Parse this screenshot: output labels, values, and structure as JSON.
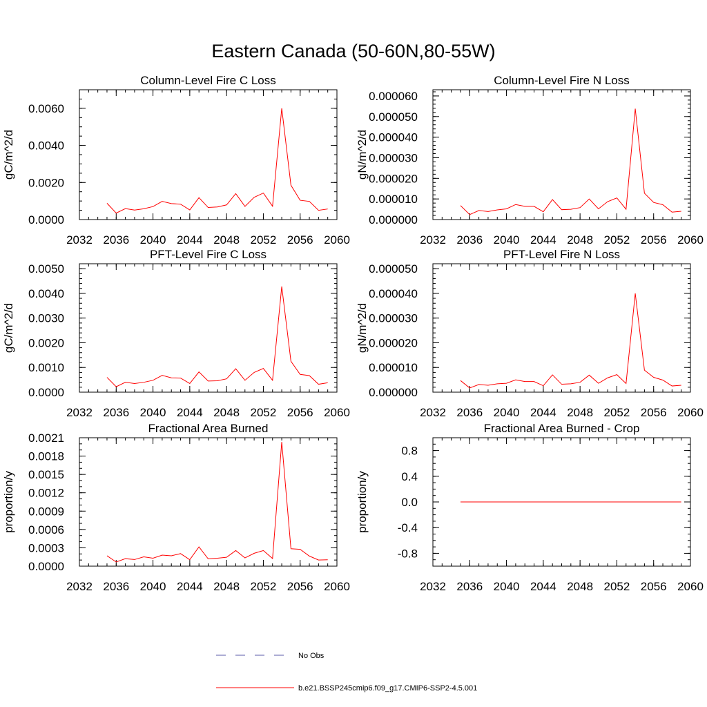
{
  "figure_title": "Eastern Canada (50-60N,80-55W)",
  "colors": {
    "model_line": "#ff0000",
    "obs_line": "#5a5aa8",
    "axis": "#000000"
  },
  "legend": {
    "obs_label": "No Obs",
    "model_label": "b.e21.BSSP245cmip6.f09_g17.CMIP6-SSP2-4.5.001"
  },
  "chart_data": [
    {
      "type": "line",
      "title": "Column-Level Fire C Loss",
      "ylabel": "gC/m^2/d",
      "xlim": [
        2032,
        2060
      ],
      "ylim": [
        0.0,
        0.007
      ],
      "xticks": [
        2032,
        2036,
        2040,
        2044,
        2048,
        2052,
        2056,
        2060
      ],
      "xtick_labels": [
        "2032",
        "2036",
        "2040",
        "2044",
        "2048",
        "2052",
        "2056",
        "2060"
      ],
      "yticks": [
        0.0,
        0.002,
        0.004,
        0.006
      ],
      "ytick_labels": [
        "0.0000",
        "0.0020",
        "0.0040",
        "0.0060"
      ],
      "minor_y_step": 0.0005,
      "series": [
        {
          "x": [
            2035,
            2036,
            2037,
            2038,
            2039,
            2040,
            2041,
            2042,
            2043,
            2044,
            2045,
            2046,
            2047,
            2048,
            2049,
            2050,
            2051,
            2052,
            2053,
            2054,
            2055,
            2056,
            2057,
            2058,
            2059
          ],
          "values": [
            0.00088,
            0.00035,
            0.00059,
            0.00051,
            0.00058,
            0.0007,
            0.00098,
            0.00086,
            0.00083,
            0.00052,
            0.00118,
            0.00065,
            0.00068,
            0.00079,
            0.0014,
            0.00071,
            0.0012,
            0.00143,
            0.00072,
            0.006,
            0.00185,
            0.00104,
            0.00098,
            0.0005,
            0.00057
          ]
        }
      ]
    },
    {
      "type": "line",
      "title": "Column-Level Fire N Loss",
      "ylabel": "gN/m^2/d",
      "xlim": [
        2032,
        2060
      ],
      "ylim": [
        0.0,
        6.3e-05
      ],
      "xticks": [
        2032,
        2036,
        2040,
        2044,
        2048,
        2052,
        2056,
        2060
      ],
      "xtick_labels": [
        "2032",
        "2036",
        "2040",
        "2044",
        "2048",
        "2052",
        "2056",
        "2060"
      ],
      "yticks": [
        0.0,
        1e-05,
        2e-05,
        3e-05,
        4e-05,
        5e-05,
        6e-05
      ],
      "ytick_labels": [
        "0.000000",
        "0.000010",
        "0.000020",
        "0.000030",
        "0.000040",
        "0.000050",
        "0.000060"
      ],
      "minor_y_step": 2e-06,
      "series": [
        {
          "x": [
            2035,
            2036,
            2037,
            2038,
            2039,
            2040,
            2041,
            2042,
            2043,
            2044,
            2045,
            2046,
            2047,
            2048,
            2049,
            2050,
            2051,
            2052,
            2053,
            2054,
            2055,
            2056,
            2057,
            2058,
            2059
          ],
          "values": [
            6.8e-06,
            2.4e-06,
            4.4e-06,
            3.9e-06,
            4.7e-06,
            5.2e-06,
            7.3e-06,
            6.4e-06,
            6.4e-06,
            3.8e-06,
            9.7e-06,
            4.8e-06,
            5e-06,
            5.8e-06,
            1e-05,
            5.2e-06,
            8.7e-06,
            1.05e-05,
            5e-06,
            5.38e-05,
            1.28e-05,
            8.3e-06,
            7.2e-06,
            3.6e-06,
            4e-06
          ]
        }
      ]
    },
    {
      "type": "line",
      "title": "PFT-Level Fire C Loss",
      "ylabel": "gC/m^2/d",
      "xlim": [
        2032,
        2060
      ],
      "ylim": [
        0.0,
        0.0052
      ],
      "xticks": [
        2032,
        2036,
        2040,
        2044,
        2048,
        2052,
        2056,
        2060
      ],
      "xtick_labels": [
        "2032",
        "2036",
        "2040",
        "2044",
        "2048",
        "2052",
        "2056",
        "2060"
      ],
      "yticks": [
        0.0,
        0.001,
        0.002,
        0.003,
        0.004,
        0.005
      ],
      "ytick_labels": [
        "0.0000",
        "0.0010",
        "0.0020",
        "0.0030",
        "0.0040",
        "0.0050"
      ],
      "minor_y_step": 0.0002,
      "series": [
        {
          "x": [
            2035,
            2036,
            2037,
            2038,
            2039,
            2040,
            2041,
            2042,
            2043,
            2044,
            2045,
            2046,
            2047,
            2048,
            2049,
            2050,
            2051,
            2052,
            2053,
            2054,
            2055,
            2056,
            2057,
            2058,
            2059
          ],
          "values": [
            0.0006,
            0.00022,
            0.0004,
            0.00035,
            0.0004,
            0.00048,
            0.00068,
            0.00058,
            0.00057,
            0.00035,
            0.00082,
            0.00045,
            0.00046,
            0.00054,
            0.00095,
            0.00048,
            0.0008,
            0.00096,
            0.00048,
            0.00428,
            0.00125,
            0.00072,
            0.00067,
            0.00032,
            0.00038
          ]
        }
      ]
    },
    {
      "type": "line",
      "title": "PFT-Level Fire N Loss",
      "ylabel": "gN/m^2/d",
      "xlim": [
        2032,
        2060
      ],
      "ylim": [
        0.0,
        5.2e-05
      ],
      "xticks": [
        2032,
        2036,
        2040,
        2044,
        2048,
        2052,
        2056,
        2060
      ],
      "xtick_labels": [
        "2032",
        "2036",
        "2040",
        "2044",
        "2048",
        "2052",
        "2056",
        "2060"
      ],
      "yticks": [
        0.0,
        1e-05,
        2e-05,
        3e-05,
        4e-05,
        5e-05
      ],
      "ytick_labels": [
        "0.000000",
        "0.000010",
        "0.000020",
        "0.000030",
        "0.000040",
        "0.000050"
      ],
      "minor_y_step": 2e-06,
      "series": [
        {
          "x": [
            2035,
            2036,
            2037,
            2038,
            2039,
            2040,
            2041,
            2042,
            2043,
            2044,
            2045,
            2046,
            2047,
            2048,
            2049,
            2050,
            2051,
            2052,
            2053,
            2054,
            2055,
            2056,
            2057,
            2058,
            2059
          ],
          "values": [
            4.7e-06,
            1.7e-06,
            3.1e-06,
            2.8e-06,
            3.4e-06,
            3.6e-06,
            5e-06,
            4.3e-06,
            4.3e-06,
            2.6e-06,
            7e-06,
            3.2e-06,
            3.4e-06,
            4e-06,
            6.9e-06,
            3.6e-06,
            5.8e-06,
            7.1e-06,
            3.5e-06,
            4e-05,
            8.9e-06,
            6e-06,
            4.9e-06,
            2.5e-06,
            2.8e-06
          ]
        }
      ]
    },
    {
      "type": "line",
      "title": "Fractional Area Burned",
      "ylabel": "proportion/y",
      "xlim": [
        2032,
        2060
      ],
      "ylim": [
        0.0,
        0.0021
      ],
      "xticks": [
        2032,
        2036,
        2040,
        2044,
        2048,
        2052,
        2056,
        2060
      ],
      "xtick_labels": [
        "2032",
        "2036",
        "2040",
        "2044",
        "2048",
        "2052",
        "2056",
        "2060"
      ],
      "yticks": [
        0.0,
        0.0003,
        0.0006,
        0.0009,
        0.0012,
        0.0015,
        0.0018,
        0.0021
      ],
      "ytick_labels": [
        "0.0000",
        "0.0003",
        "0.0006",
        "0.0009",
        "0.0012",
        "0.0015",
        "0.0018",
        "0.0021"
      ],
      "minor_y_step": 0.0001,
      "series": [
        {
          "x": [
            2035,
            2036,
            2037,
            2038,
            2039,
            2040,
            2041,
            2042,
            2043,
            2044,
            2045,
            2046,
            2047,
            2048,
            2049,
            2050,
            2051,
            2052,
            2053,
            2054,
            2055,
            2056,
            2057,
            2058,
            2059
          ],
          "values": [
            0.00017,
            6.8e-05,
            0.000122,
            0.000108,
            0.000152,
            0.00013,
            0.00018,
            0.00017,
            0.000205,
            0.000105,
            0.000315,
            0.00012,
            0.00013,
            0.000145,
            0.000255,
            0.000135,
            0.00021,
            0.000255,
            0.000125,
            0.00203,
            0.000285,
            0.000275,
            0.000165,
            0.0001,
            0.000105
          ]
        }
      ]
    },
    {
      "type": "line",
      "title": "Fractional Area Burned - Crop",
      "ylabel": "proportion/y",
      "xlim": [
        2032,
        2060
      ],
      "ylim": [
        -1.0,
        1.0
      ],
      "xticks": [
        2032,
        2036,
        2040,
        2044,
        2048,
        2052,
        2056,
        2060
      ],
      "xtick_labels": [
        "2032",
        "2036",
        "2040",
        "2044",
        "2048",
        "2052",
        "2056",
        "2060"
      ],
      "yticks": [
        -0.8,
        -0.4,
        0.0,
        0.4,
        0.8
      ],
      "ytick_labels": [
        "-0.8",
        "-0.4",
        "0.0",
        "0.4",
        "0.8"
      ],
      "minor_y_step": 0.1,
      "series": [
        {
          "x": [
            2035,
            2036,
            2037,
            2038,
            2039,
            2040,
            2041,
            2042,
            2043,
            2044,
            2045,
            2046,
            2047,
            2048,
            2049,
            2050,
            2051,
            2052,
            2053,
            2054,
            2055,
            2056,
            2057,
            2058,
            2059
          ],
          "values": [
            0,
            0,
            0,
            0,
            0,
            0,
            0,
            0,
            0,
            0,
            0,
            0,
            0,
            0,
            0,
            0,
            0,
            0,
            0,
            0,
            0,
            0,
            0,
            0,
            0
          ]
        }
      ]
    }
  ]
}
